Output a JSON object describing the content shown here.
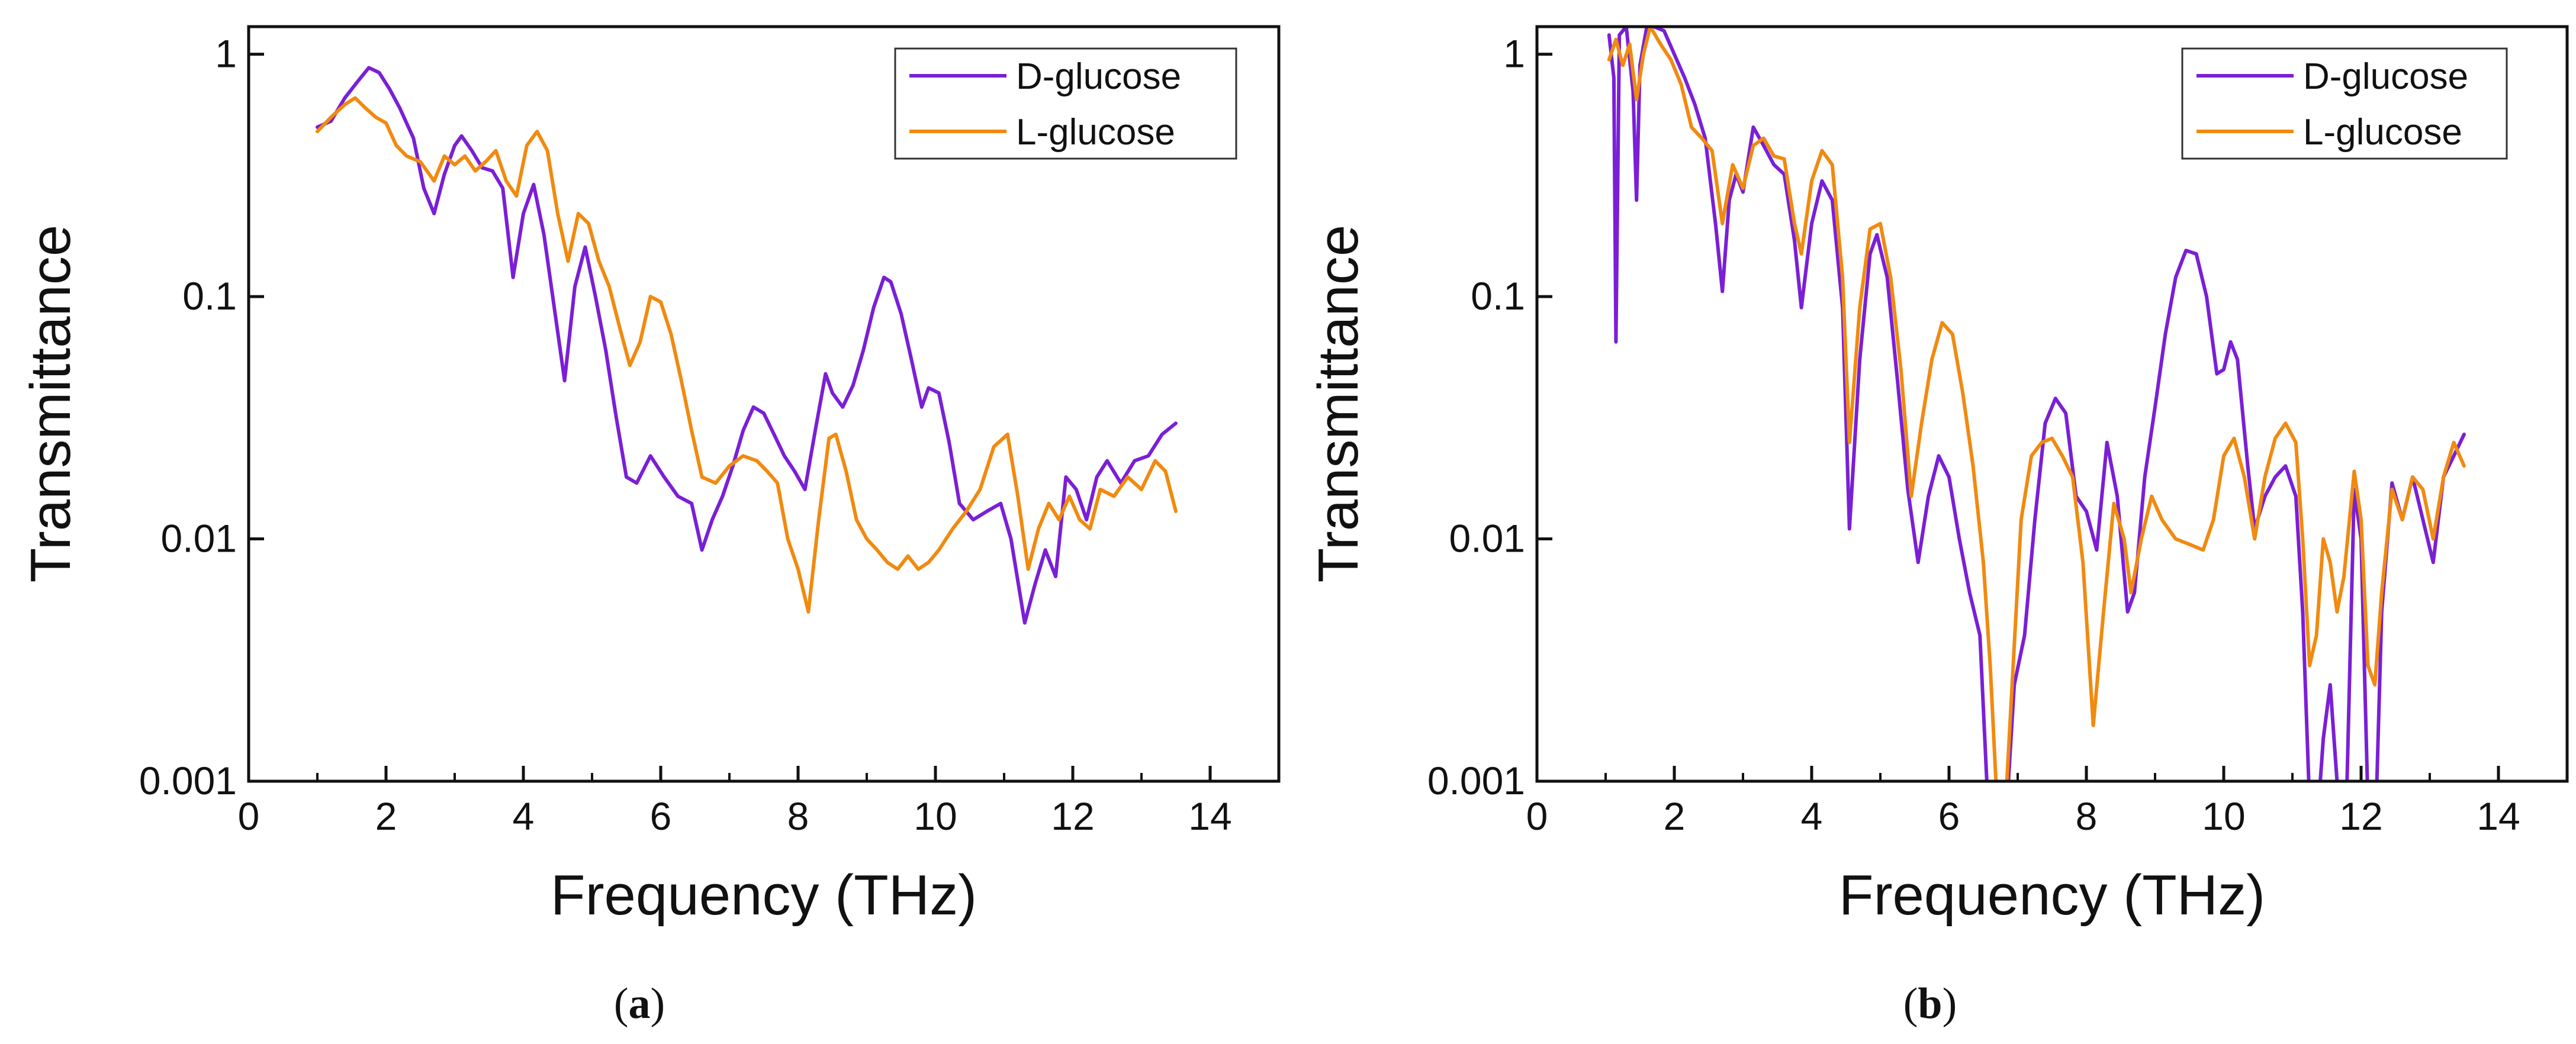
{
  "colors": {
    "d_glucose": "#7A1FD6",
    "l_glucose": "#F08A10"
  },
  "chart_data": [
    {
      "type": "line",
      "panel": "a",
      "panel_label": "a",
      "xlabel": "Frequency (THz)",
      "ylabel": "Transmittance",
      "xlim": [
        0,
        15
      ],
      "ylim": [
        0.001,
        1.3
      ],
      "yscale": "log",
      "xticks": [
        0,
        2,
        4,
        6,
        8,
        10,
        12,
        14
      ],
      "yticks": [
        0.001,
        0.01,
        0.1,
        1
      ],
      "ytick_labels": [
        "0.001",
        "0.01",
        "0.1",
        "1"
      ],
      "legend_position": "top-right",
      "series": [
        {
          "name": "D-glucose",
          "color": "#7A1FD6",
          "x": [
            1.0,
            1.2,
            1.4,
            1.6,
            1.75,
            1.9,
            2.05,
            2.2,
            2.4,
            2.55,
            2.7,
            2.85,
            3.0,
            3.1,
            3.25,
            3.4,
            3.55,
            3.7,
            3.85,
            4.0,
            4.15,
            4.3,
            4.45,
            4.6,
            4.75,
            4.9,
            5.05,
            5.2,
            5.35,
            5.5,
            5.65,
            5.85,
            6.05,
            6.25,
            6.45,
            6.6,
            6.75,
            6.9,
            7.05,
            7.2,
            7.35,
            7.5,
            7.65,
            7.8,
            7.95,
            8.1,
            8.25,
            8.4,
            8.5,
            8.65,
            8.8,
            8.95,
            9.1,
            9.25,
            9.35,
            9.5,
            9.65,
            9.8,
            9.9,
            10.05,
            10.2,
            10.35,
            10.55,
            10.75,
            10.95,
            11.1,
            11.3,
            11.45,
            11.6,
            11.75,
            11.9,
            12.05,
            12.2,
            12.35,
            12.5,
            12.7,
            12.9,
            13.1,
            13.3,
            13.5
          ],
          "y": [
            0.5,
            0.53,
            0.66,
            0.78,
            0.88,
            0.84,
            0.72,
            0.6,
            0.45,
            0.28,
            0.22,
            0.32,
            0.42,
            0.46,
            0.4,
            0.34,
            0.33,
            0.28,
            0.12,
            0.22,
            0.29,
            0.18,
            0.09,
            0.045,
            0.11,
            0.16,
            0.1,
            0.06,
            0.032,
            0.018,
            0.017,
            0.022,
            0.018,
            0.015,
            0.014,
            0.009,
            0.012,
            0.015,
            0.02,
            0.028,
            0.035,
            0.033,
            0.027,
            0.022,
            0.019,
            0.016,
            0.028,
            0.048,
            0.04,
            0.035,
            0.043,
            0.06,
            0.09,
            0.12,
            0.115,
            0.085,
            0.055,
            0.035,
            0.042,
            0.04,
            0.025,
            0.014,
            0.012,
            0.013,
            0.014,
            0.01,
            0.0045,
            0.0065,
            0.009,
            0.007,
            0.018,
            0.016,
            0.012,
            0.018,
            0.021,
            0.017,
            0.021,
            0.022,
            0.027,
            0.03
          ]
        },
        {
          "name": "L-glucose",
          "color": "#F08A10",
          "x": [
            1.0,
            1.2,
            1.4,
            1.55,
            1.7,
            1.85,
            2.0,
            2.15,
            2.3,
            2.5,
            2.7,
            2.85,
            3.0,
            3.15,
            3.3,
            3.45,
            3.6,
            3.75,
            3.9,
            4.05,
            4.2,
            4.35,
            4.5,
            4.65,
            4.8,
            4.95,
            5.1,
            5.25,
            5.4,
            5.55,
            5.7,
            5.85,
            6.0,
            6.15,
            6.3,
            6.45,
            6.6,
            6.8,
            7.0,
            7.2,
            7.4,
            7.55,
            7.7,
            7.85,
            8.0,
            8.15,
            8.3,
            8.45,
            8.55,
            8.7,
            8.85,
            9.0,
            9.15,
            9.3,
            9.45,
            9.6,
            9.75,
            9.9,
            10.05,
            10.25,
            10.45,
            10.65,
            10.85,
            11.05,
            11.2,
            11.35,
            11.5,
            11.65,
            11.8,
            11.95,
            12.1,
            12.25,
            12.4,
            12.6,
            12.8,
            13.0,
            13.2,
            13.35,
            13.5
          ],
          "y": [
            0.48,
            0.55,
            0.62,
            0.66,
            0.6,
            0.55,
            0.52,
            0.42,
            0.38,
            0.36,
            0.3,
            0.38,
            0.35,
            0.38,
            0.33,
            0.36,
            0.4,
            0.3,
            0.26,
            0.42,
            0.48,
            0.4,
            0.22,
            0.14,
            0.22,
            0.2,
            0.14,
            0.11,
            0.075,
            0.052,
            0.065,
            0.1,
            0.095,
            0.07,
            0.045,
            0.028,
            0.018,
            0.017,
            0.02,
            0.022,
            0.021,
            0.019,
            0.017,
            0.01,
            0.0075,
            0.005,
            0.012,
            0.026,
            0.027,
            0.019,
            0.012,
            0.01,
            0.009,
            0.008,
            0.0075,
            0.0085,
            0.0075,
            0.008,
            0.009,
            0.011,
            0.013,
            0.016,
            0.024,
            0.027,
            0.015,
            0.0075,
            0.011,
            0.014,
            0.012,
            0.015,
            0.012,
            0.011,
            0.016,
            0.015,
            0.018,
            0.016,
            0.021,
            0.019,
            0.013
          ]
        }
      ]
    },
    {
      "type": "line",
      "panel": "b",
      "panel_label": "b",
      "xlabel": "Frequency (THz)",
      "ylabel": "Transmittance",
      "xlim": [
        0,
        15
      ],
      "ylim": [
        0.001,
        1.3
      ],
      "yscale": "log",
      "xticks": [
        0,
        2,
        4,
        6,
        8,
        10,
        12,
        14
      ],
      "yticks": [
        0.001,
        0.01,
        0.1,
        1
      ],
      "ytick_labels": [
        "0.001",
        "0.01",
        "0.1",
        "1"
      ],
      "legend_position": "top-right",
      "series": [
        {
          "name": "D-glucose",
          "color": "#7A1FD6",
          "x": [
            1.05,
            1.12,
            1.15,
            1.2,
            1.3,
            1.4,
            1.45,
            1.5,
            1.6,
            1.7,
            1.85,
            2.0,
            2.15,
            2.3,
            2.45,
            2.6,
            2.7,
            2.8,
            2.9,
            3.0,
            3.15,
            3.3,
            3.45,
            3.6,
            3.75,
            3.85,
            4.0,
            4.15,
            4.3,
            4.45,
            4.55,
            4.7,
            4.85,
            4.95,
            5.1,
            5.25,
            5.4,
            5.55,
            5.7,
            5.85,
            6.0,
            6.15,
            6.3,
            6.45,
            6.55,
            6.65,
            6.8,
            6.95,
            7.1,
            7.25,
            7.4,
            7.55,
            7.7,
            7.85,
            8.0,
            8.15,
            8.3,
            8.45,
            8.6,
            8.7,
            8.85,
            9.0,
            9.15,
            9.3,
            9.45,
            9.6,
            9.75,
            9.9,
            10.0,
            10.1,
            10.2,
            10.35,
            10.45,
            10.6,
            10.75,
            10.9,
            11.05,
            11.15,
            11.25,
            11.35,
            11.45,
            11.55,
            11.65,
            11.75,
            11.9,
            12.0,
            12.1,
            12.2,
            12.3,
            12.45,
            12.6,
            12.75,
            12.9,
            13.05,
            13.2,
            13.35,
            13.5
          ],
          "y": [
            1.2,
            0.8,
            0.065,
            1.2,
            1.3,
            0.7,
            0.25,
            0.9,
            1.3,
            1.3,
            1.25,
            1.0,
            0.8,
            0.62,
            0.45,
            0.2,
            0.105,
            0.25,
            0.32,
            0.27,
            0.5,
            0.42,
            0.35,
            0.32,
            0.17,
            0.09,
            0.2,
            0.3,
            0.25,
            0.09,
            0.011,
            0.055,
            0.15,
            0.18,
            0.12,
            0.045,
            0.016,
            0.008,
            0.015,
            0.022,
            0.018,
            0.01,
            0.006,
            0.004,
            0.001,
            0.0005,
            0.0005,
            0.0025,
            0.004,
            0.012,
            0.03,
            0.038,
            0.033,
            0.015,
            0.013,
            0.009,
            0.025,
            0.015,
            0.005,
            0.006,
            0.018,
            0.035,
            0.07,
            0.12,
            0.155,
            0.15,
            0.1,
            0.048,
            0.05,
            0.065,
            0.055,
            0.02,
            0.011,
            0.015,
            0.018,
            0.02,
            0.015,
            0.005,
            0.0008,
            0.0006,
            0.0015,
            0.0025,
            0.001,
            0.0003,
            0.016,
            0.01,
            0.0008,
            0.0005,
            0.005,
            0.017,
            0.012,
            0.018,
            0.012,
            0.008,
            0.018,
            0.022,
            0.027
          ]
        },
        {
          "name": "L-glucose",
          "color": "#F08A10",
          "x": [
            1.05,
            1.15,
            1.25,
            1.35,
            1.45,
            1.55,
            1.65,
            1.8,
            1.95,
            2.1,
            2.25,
            2.4,
            2.55,
            2.7,
            2.85,
            3.0,
            3.15,
            3.3,
            3.45,
            3.6,
            3.75,
            3.85,
            4.0,
            4.15,
            4.3,
            4.45,
            4.55,
            4.7,
            4.85,
            5.0,
            5.15,
            5.3,
            5.45,
            5.6,
            5.75,
            5.9,
            6.05,
            6.2,
            6.35,
            6.5,
            6.6,
            6.7,
            6.8,
            6.9,
            7.05,
            7.2,
            7.35,
            7.5,
            7.65,
            7.8,
            7.95,
            8.1,
            8.25,
            8.4,
            8.55,
            8.65,
            8.8,
            8.95,
            9.1,
            9.3,
            9.5,
            9.7,
            9.85,
            10.0,
            10.15,
            10.3,
            10.45,
            10.6,
            10.75,
            10.9,
            11.05,
            11.15,
            11.25,
            11.35,
            11.45,
            11.55,
            11.65,
            11.75,
            11.9,
            12.0,
            12.1,
            12.2,
            12.3,
            12.45,
            12.6,
            12.75,
            12.9,
            13.05,
            13.2,
            13.35,
            13.5
          ],
          "y": [
            0.95,
            1.15,
            0.9,
            1.1,
            0.65,
            1.0,
            1.3,
            1.1,
            0.95,
            0.75,
            0.5,
            0.45,
            0.4,
            0.2,
            0.35,
            0.28,
            0.42,
            0.45,
            0.38,
            0.37,
            0.2,
            0.15,
            0.3,
            0.4,
            0.35,
            0.12,
            0.025,
            0.09,
            0.19,
            0.2,
            0.12,
            0.05,
            0.015,
            0.03,
            0.055,
            0.078,
            0.07,
            0.04,
            0.02,
            0.008,
            0.003,
            0.0008,
            0.0006,
            0.002,
            0.012,
            0.022,
            0.025,
            0.026,
            0.022,
            0.018,
            0.008,
            0.0017,
            0.005,
            0.014,
            0.01,
            0.006,
            0.01,
            0.015,
            0.012,
            0.01,
            0.0095,
            0.009,
            0.012,
            0.022,
            0.026,
            0.018,
            0.01,
            0.018,
            0.026,
            0.03,
            0.025,
            0.01,
            0.003,
            0.004,
            0.01,
            0.008,
            0.005,
            0.007,
            0.019,
            0.012,
            0.003,
            0.0025,
            0.006,
            0.016,
            0.012,
            0.018,
            0.016,
            0.01,
            0.018,
            0.025,
            0.02
          ]
        }
      ]
    }
  ]
}
